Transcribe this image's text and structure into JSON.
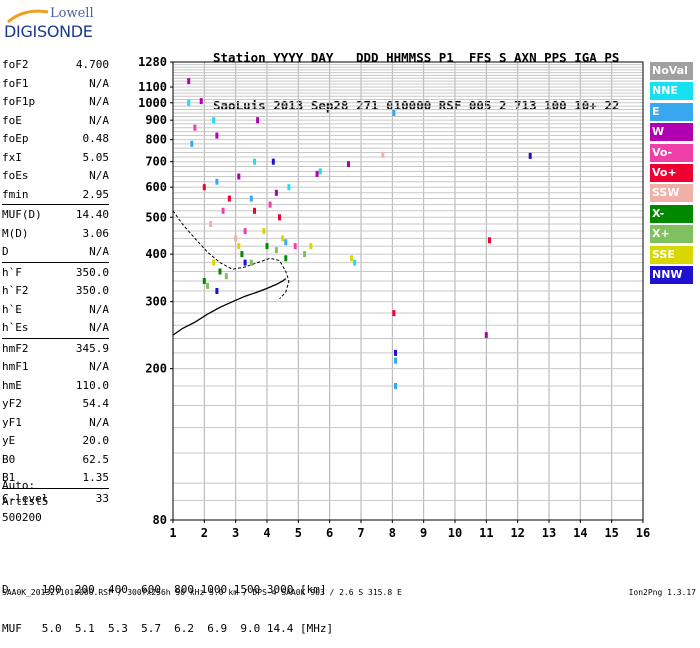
{
  "logo": {
    "brand": "Lowell",
    "product": "DIGISONDE"
  },
  "header": {
    "line1": "Station YYYY DAY   DDD HHMMSS P1  FFS S AXN PPS IGA PS",
    "line2": "SaoLuis 2013 Sep28 271 010000 RSF 005 2 713 100 10+ 22"
  },
  "params": [
    [
      {
        "k": "foF2",
        "v": "4.700"
      },
      {
        "k": "foF1",
        "v": "N/A"
      },
      {
        "k": "foF1p",
        "v": "N/A"
      },
      {
        "k": "foE",
        "v": "N/A"
      },
      {
        "k": "foEp",
        "v": "0.48"
      },
      {
        "k": "fxI",
        "v": "5.05"
      },
      {
        "k": "foEs",
        "v": "N/A"
      },
      {
        "k": "fmin",
        "v": "2.95"
      }
    ],
    [
      {
        "k": "MUF(D)",
        "v": "14.40"
      },
      {
        "k": "M(D)",
        "v": "3.06"
      },
      {
        "k": "D",
        "v": "N/A"
      }
    ],
    [
      {
        "k": "h`F",
        "v": "350.0"
      },
      {
        "k": "h`F2",
        "v": "350.0"
      },
      {
        "k": "h`E",
        "v": "N/A"
      },
      {
        "k": "h`Es",
        "v": "N/A"
      }
    ],
    [
      {
        "k": "hmF2",
        "v": "345.9"
      },
      {
        "k": "hmF1",
        "v": "N/A"
      },
      {
        "k": "hmE",
        "v": "110.0"
      },
      {
        "k": "yF2",
        "v": "54.4"
      },
      {
        "k": "yF1",
        "v": "N/A"
      },
      {
        "k": "yE",
        "v": "20.0"
      },
      {
        "k": "B0",
        "v": "62.5"
      },
      {
        "k": "B1",
        "v": "1.35"
      }
    ],
    [
      {
        "k": "C-level",
        "v": "33"
      }
    ]
  ],
  "auto": {
    "line1": "Auto:",
    "line2": "Artist5",
    "line3": "500200"
  },
  "dmuf": {
    "line1": "D     100  200  400  600  800 1000 1500 3000 [km]",
    "line2": "MUF   5.0  5.1  5.3  5.7  6.2  6.9  9.0 14.4 [MHz]"
  },
  "footer": {
    "left": "SAA0K_2013271010000.RSF / 300fx256h 50 kHz 5.0 km / DPS-4 SAA0K 903 / 2.6 S 315.8 E",
    "right": "Ion2Png 1.3.17"
  },
  "legend": [
    {
      "label": "NoVal",
      "color": "#a0a0a0"
    },
    {
      "label": "NNE",
      "color": "#18e0f0"
    },
    {
      "label": "E",
      "color": "#3aa8f0"
    },
    {
      "label": "W",
      "color": "#b000b0"
    },
    {
      "label": "Vo-",
      "color": "#f040a8"
    },
    {
      "label": "Vo+",
      "color": "#ee0033"
    },
    {
      "label": "SSW",
      "color": "#f0b0a8"
    },
    {
      "label": "X-",
      "color": "#008800"
    },
    {
      "label": "X+",
      "color": "#80c060"
    },
    {
      "label": "SSE",
      "color": "#d8d800"
    },
    {
      "label": "NNW",
      "color": "#2010d0"
    }
  ],
  "chart_data": {
    "type": "scatter",
    "title": "",
    "xlabel": "",
    "ylabel": "",
    "xlim": [
      1,
      16
    ],
    "ylim": [
      80,
      1280
    ],
    "x_ticks": [
      "1",
      "2",
      "3",
      "4",
      "5",
      "6",
      "7",
      "8",
      "9",
      "10",
      "11",
      "12",
      "13",
      "14",
      "15",
      "16"
    ],
    "y_ticks": [
      "80",
      "200",
      "300",
      "400",
      "500",
      "600",
      "700",
      "800",
      "900",
      "1000",
      "1100",
      "1280"
    ],
    "y_scale": "log",
    "grid": true,
    "series": [
      {
        "name": "NoVal",
        "x": [],
        "y": []
      },
      {
        "name": "NNE",
        "x": [
          1.5,
          2.3,
          3.6,
          4.7,
          5.7,
          6.8
        ],
        "y": [
          1000,
          900,
          700,
          600,
          660,
          380
        ]
      },
      {
        "name": "E",
        "x": [
          1.6,
          2.4,
          3.5,
          4.6,
          8.05,
          8.1,
          8.1
        ],
        "y": [
          780,
          620,
          560,
          430,
          940,
          210,
          180
        ]
      },
      {
        "name": "W",
        "x": [
          1.5,
          1.9,
          2.4,
          3.1,
          3.7,
          4.3,
          5.6,
          6.6,
          11.0
        ],
        "y": [
          1140,
          1010,
          820,
          640,
          900,
          580,
          650,
          690,
          245
        ]
      },
      {
        "name": "Vo-",
        "x": [
          1.7,
          2.6,
          3.3,
          4.1,
          4.9
        ],
        "y": [
          860,
          520,
          460,
          540,
          420
        ]
      },
      {
        "name": "Vo+",
        "x": [
          2.0,
          2.8,
          3.6,
          4.4,
          8.05,
          11.1
        ],
        "y": [
          600,
          560,
          520,
          500,
          280,
          435
        ]
      },
      {
        "name": "SSW",
        "x": [
          2.2,
          3.0,
          7.7
        ],
        "y": [
          480,
          440,
          730
        ]
      },
      {
        "name": "X-",
        "x": [
          2.0,
          2.5,
          3.2,
          4.0,
          4.6
        ],
        "y": [
          340,
          360,
          400,
          420,
          390
        ]
      },
      {
        "name": "X+",
        "x": [
          2.1,
          2.7,
          3.5,
          4.3,
          5.2
        ],
        "y": [
          330,
          350,
          380,
          410,
          400
        ]
      },
      {
        "name": "SSE",
        "x": [
          2.3,
          3.1,
          3.9,
          4.5,
          5.4,
          6.7
        ],
        "y": [
          380,
          420,
          460,
          440,
          420,
          390
        ]
      },
      {
        "name": "NNW",
        "x": [
          2.4,
          3.3,
          4.2,
          8.1,
          12.4
        ],
        "y": [
          320,
          380,
          700,
          220,
          725
        ]
      }
    ],
    "profile": {
      "x": [
        1.0,
        1.3,
        1.7,
        2.1,
        2.5,
        2.9,
        3.3,
        3.7,
        4.0,
        4.3,
        4.5,
        4.6
      ],
      "y": [
        245,
        255,
        265,
        278,
        290,
        300,
        310,
        318,
        325,
        333,
        340,
        345
      ]
    },
    "trace": {
      "x": [
        1.0,
        1.3,
        1.7,
        2.1,
        2.5,
        2.9,
        3.3,
        3.7,
        4.1,
        4.4,
        4.6,
        4.7,
        4.6,
        4.4
      ],
      "y": [
        520,
        480,
        440,
        405,
        380,
        365,
        370,
        380,
        390,
        385,
        360,
        340,
        318,
        305
      ]
    }
  }
}
